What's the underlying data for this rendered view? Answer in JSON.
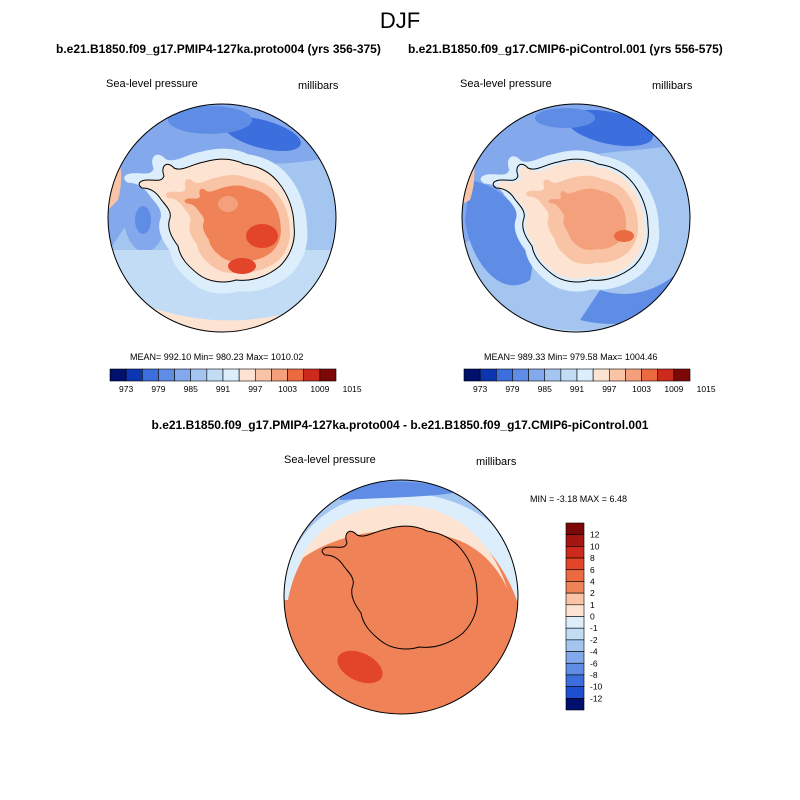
{
  "title": "DJF",
  "colors": {
    "pos": [
      "#fde4d2",
      "#f9c3a6",
      "#f5a07c",
      "#f08257",
      "#ec6a3f",
      "#e2452a",
      "#cc2a1c",
      "#a51612",
      "#7d0808"
    ],
    "neg": [
      "#dceefc",
      "#c3dcf6",
      "#a5c5f1",
      "#83a9ec",
      "#5f8de6",
      "#3c6fdd",
      "#1d4fd0",
      "#0c35b0",
      "#00208b",
      "#00106c"
    ],
    "land_coast": "#000000"
  },
  "panels": [
    {
      "header": "b.e21.B1850.f09_g17.PMIP4-127ka.proto004 (yrs 356-375)",
      "var_label": "Sea-level pressure",
      "unit_label": "millibars",
      "stats": "MEAN= 992.10  Min= 980.23  Max= 1010.02"
    },
    {
      "header": "b.e21.B1850.f09_g17.CMIP6-piControl.001 (yrs 556-575)",
      "var_label": "Sea-level pressure",
      "unit_label": "millibars",
      "stats": "MEAN= 989.33  Min= 979.58  Max= 1004.46"
    },
    {
      "header": "b.e21.B1850.f09_g17.PMIP4-127ka.proto004 - b.e21.B1850.f09_g17.CMIP6-piControl.001",
      "var_label": "Sea-level pressure",
      "unit_label": "millibars",
      "stats": "MIN =  -3.18 MAX =   6.48"
    }
  ],
  "abs_colorbar": {
    "levels": [
      "973",
      "979",
      "985",
      "991",
      "997",
      "1003",
      "1009",
      "1015"
    ],
    "colors": [
      "#00106c",
      "#0c35b0",
      "#3c6fdd",
      "#5f8de6",
      "#83a9ec",
      "#a5c5f1",
      "#c3dcf6",
      "#dceefc",
      "#fde4d2",
      "#f9c3a6",
      "#f5a07c",
      "#ec6a3f",
      "#cc2a1c",
      "#7d0808"
    ]
  },
  "diff_colorbar": {
    "levels": [
      "12",
      "10",
      "8",
      "6",
      "4",
      "2",
      "1",
      "0",
      "-1",
      "-2",
      "-4",
      "-6",
      "-8",
      "-10",
      "-12"
    ],
    "colors": [
      "#7d0808",
      "#a51612",
      "#cc2a1c",
      "#e2452a",
      "#ec6a3f",
      "#f08257",
      "#f9c3a6",
      "#fde4d2",
      "#dceefc",
      "#c3dcf6",
      "#a5c5f1",
      "#83a9ec",
      "#5f8de6",
      "#3c6fdd",
      "#1d4fd0",
      "#00106c"
    ]
  }
}
